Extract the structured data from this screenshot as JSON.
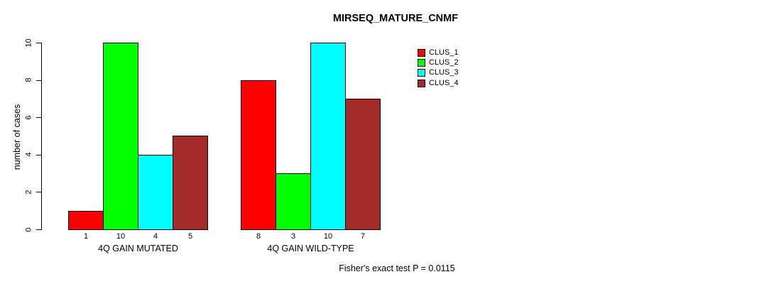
{
  "chart_data": {
    "type": "bar",
    "title": "MIRSEQ_MATURE_CNMF",
    "ylabel": "number of cases",
    "xlabel": "",
    "categories": [
      "4Q GAIN MUTATED",
      "4Q GAIN WILD-TYPE"
    ],
    "series": [
      {
        "name": "CLUS_1",
        "color": "#FF0000",
        "values": [
          1,
          8
        ]
      },
      {
        "name": "CLUS_2",
        "color": "#00FF00",
        "values": [
          10,
          3
        ]
      },
      {
        "name": "CLUS_3",
        "color": "#00FFFF",
        "values": [
          4,
          10
        ]
      },
      {
        "name": "CLUS_4",
        "color": "#A52A2A",
        "values": [
          5,
          7
        ]
      }
    ],
    "ylim": [
      0,
      10
    ],
    "yticks": [
      0,
      2,
      4,
      6,
      8,
      10
    ],
    "show_bar_values": true,
    "legend_position": "top-right",
    "grid": false,
    "annotation": "Fisher's exact test P = 0.0115",
    "axis_color": "#000000",
    "background_color": "#FFFFFF"
  }
}
